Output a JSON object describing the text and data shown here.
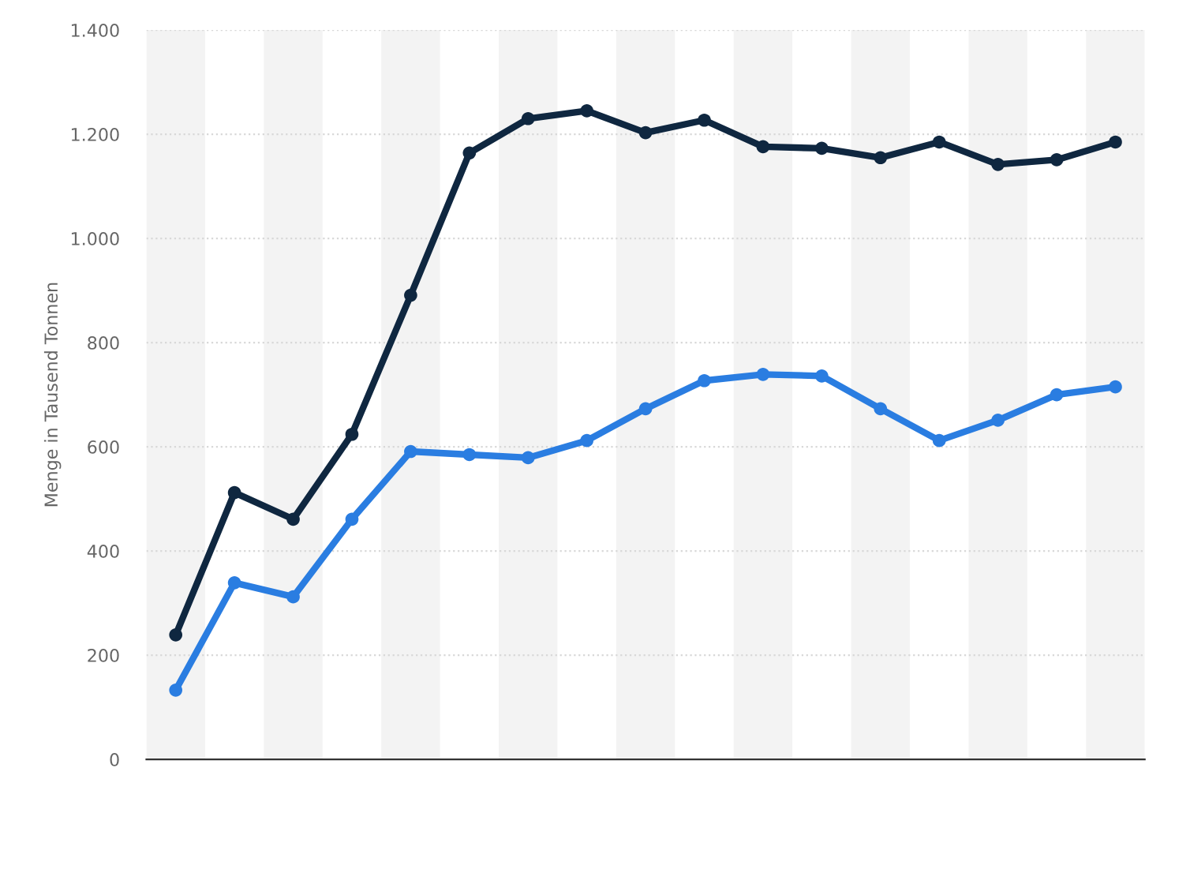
{
  "chart_data": {
    "type": "line",
    "ylabel": "Menge in Tausend Tonnen",
    "categories": [
      null,
      null,
      null,
      null,
      null,
      null,
      null,
      null,
      null,
      null,
      null,
      null,
      null,
      null,
      null,
      null,
      null
    ],
    "series": [
      {
        "color": "#0f2740",
        "values": [
          239,
          512,
          461,
          624,
          891,
          1164,
          1230,
          1245,
          1203,
          1227,
          1176,
          1173,
          1155,
          1185,
          1142,
          1151,
          1185
        ]
      },
      {
        "color": "#2a7de1",
        "values": [
          133,
          339,
          312,
          461,
          591,
          585,
          579,
          612,
          673,
          727,
          739,
          736,
          673,
          612,
          651,
          700,
          715
        ]
      }
    ],
    "ylim": [
      0,
      1400
    ],
    "yticks": [
      0,
      200,
      400,
      600,
      800,
      {
        "value": 1000,
        "label": "1.000"
      },
      {
        "value": 1200,
        "label": "1.200"
      },
      {
        "value": 1400,
        "label": "1.400"
      }
    ],
    "grid": "y",
    "marker": "circle",
    "line_style": "solid"
  }
}
